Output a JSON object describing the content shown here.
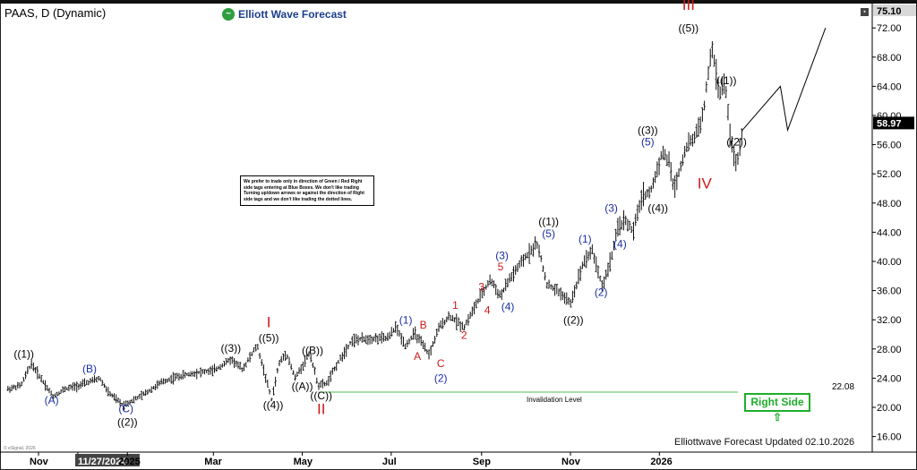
{
  "title": "PAAS, D (Dynamic)",
  "logo": {
    "text": "Elliott Wave Forecast",
    "icon": "elliott-wave-logo"
  },
  "disclaimer": "We prefer to trade only in direction of Green / Red Right side tags entering at Blue Boxes. We don't like trading Turning up/down arrows or against the direction of Right side tags and we don't like trading the dotted lines.",
  "right_side_tag": {
    "label": "Right Side",
    "arrow": "⇧"
  },
  "footer": "Elliottwave Forecast Updated 02.10.2026",
  "copyright": "© eSignal, 2026",
  "chart_data": {
    "type": "ohlc-bar",
    "y_axis": {
      "min": 16,
      "max": 76,
      "ticks": [
        16,
        20,
        24,
        28,
        32,
        36,
        40,
        44,
        48,
        52,
        56,
        60,
        64,
        68,
        72
      ],
      "tick_labels": [
        "16.00",
        "20.00",
        "24.00",
        "28.00",
        "32.00",
        "36.00",
        "40.00",
        "44.00",
        "48.00",
        "52.00",
        "56.00",
        "60.00",
        "64.00",
        "68.00",
        "72.00"
      ],
      "top_label": "75.10"
    },
    "x_axis": {
      "ticks": [
        {
          "label": "Nov",
          "d": 0
        },
        {
          "label": "11/27/2024",
          "d": 27,
          "highlight": true
        },
        {
          "label": "2025",
          "d": 61
        },
        {
          "label": "Mar",
          "d": 120
        },
        {
          "label": "May",
          "d": 181
        },
        {
          "label": "Jul",
          "d": 242
        },
        {
          "label": "Sep",
          "d": 304
        },
        {
          "label": "Nov",
          "d": 365
        },
        {
          "label": "2026",
          "d": 426
        }
      ],
      "day_range": [
        -21,
        542
      ]
    },
    "last_price": {
      "value": 58.97,
      "label": "58.97"
    },
    "invalidation": {
      "value": 22.08,
      "label": "22.08",
      "text": "Invalidation Level",
      "d_start": 192,
      "d_end": 480
    },
    "price_path": [
      [
        -21,
        22.5
      ],
      [
        -12,
        23
      ],
      [
        -5,
        26.0
      ],
      [
        0,
        24.5
      ],
      [
        10,
        21.5
      ],
      [
        18,
        22.5
      ],
      [
        28,
        23
      ],
      [
        42,
        24
      ],
      [
        48,
        22
      ],
      [
        58,
        20.3
      ],
      [
        70,
        21.5
      ],
      [
        85,
        23.5
      ],
      [
        95,
        24.2
      ],
      [
        110,
        24.8
      ],
      [
        120,
        25
      ],
      [
        132,
        26.6
      ],
      [
        140,
        25.2
      ],
      [
        150,
        28.5
      ],
      [
        160,
        21
      ],
      [
        165,
        26
      ],
      [
        170,
        27.5
      ],
      [
        176,
        24
      ],
      [
        182,
        26
      ],
      [
        186,
        27.5
      ],
      [
        192,
        23
      ],
      [
        198,
        23.3
      ],
      [
        205,
        26
      ],
      [
        215,
        29.2
      ],
      [
        227,
        29.4
      ],
      [
        240,
        29.5
      ],
      [
        245,
        31
      ],
      [
        252,
        28.4
      ],
      [
        258,
        30.2
      ],
      [
        268,
        27.2
      ],
      [
        275,
        31
      ],
      [
        282,
        32.5
      ],
      [
        292,
        31
      ],
      [
        300,
        34
      ],
      [
        310,
        37.5
      ],
      [
        317,
        35.2
      ],
      [
        323,
        37.5
      ],
      [
        335,
        40.8
      ],
      [
        342,
        42.5
      ],
      [
        349,
        36.8
      ],
      [
        358,
        35.7
      ],
      [
        365,
        34.2
      ],
      [
        374,
        40.0
      ],
      [
        380,
        41.5
      ],
      [
        387,
        36.5
      ],
      [
        393,
        40.5
      ],
      [
        398,
        44.9
      ],
      [
        403,
        45.6
      ],
      [
        408,
        44
      ],
      [
        414,
        49
      ],
      [
        420,
        49.5
      ],
      [
        428,
        55
      ],
      [
        433,
        53.5
      ],
      [
        436,
        49.8
      ],
      [
        444,
        55.5
      ],
      [
        450,
        57
      ],
      [
        456,
        60
      ],
      [
        462,
        69.5
      ],
      [
        467,
        63
      ],
      [
        471,
        64.5
      ],
      [
        475,
        56.5
      ],
      [
        479,
        53
      ],
      [
        483,
        58
      ]
    ],
    "projection": [
      [
        483,
        58
      ],
      [
        509,
        64
      ],
      [
        514,
        58
      ],
      [
        540,
        72
      ]
    ],
    "wave_labels": [
      {
        "text": "((1))",
        "d": -10,
        "v": 26.8,
        "color": "#000"
      },
      {
        "text": "(A)",
        "d": 9,
        "v": 20.5,
        "color": "#1a2ea6"
      },
      {
        "text": "(B)",
        "d": 35,
        "v": 24.8,
        "color": "#1a2ea6"
      },
      {
        "text": "(C)",
        "d": 60,
        "v": 19.3,
        "color": "#1a2ea6"
      },
      {
        "text": "((2))",
        "d": 61,
        "v": 17.5,
        "color": "#000"
      },
      {
        "text": "((3))",
        "d": 132,
        "v": 27.6,
        "color": "#000"
      },
      {
        "text": "((5))",
        "d": 158,
        "v": 29.0,
        "color": "#000"
      },
      {
        "text": "I",
        "d": 158,
        "v": 31.0,
        "color": "#d01818",
        "big": true
      },
      {
        "text": "((4))",
        "d": 161,
        "v": 19.8,
        "color": "#000"
      },
      {
        "text": "((B))",
        "d": 188,
        "v": 27.3,
        "color": "#000"
      },
      {
        "text": "((A))",
        "d": 181,
        "v": 22.4,
        "color": "#000"
      },
      {
        "text": "((C))",
        "d": 194,
        "v": 21.1,
        "color": "#000"
      },
      {
        "text": "II",
        "d": 194,
        "v": 19.1,
        "color": "#d01818",
        "big": true
      },
      {
        "text": "(1)",
        "d": 252,
        "v": 31.5,
        "color": "#1a2ea6"
      },
      {
        "text": "A",
        "d": 260,
        "v": 26.5,
        "color": "#d01818"
      },
      {
        "text": "B",
        "d": 264,
        "v": 30.8,
        "color": "#d01818"
      },
      {
        "text": "C",
        "d": 276,
        "v": 25.5,
        "color": "#d01818"
      },
      {
        "text": "(2)",
        "d": 276,
        "v": 23.5,
        "color": "#1a2ea6"
      },
      {
        "text": "1",
        "d": 286,
        "v": 33.5,
        "color": "#d01818"
      },
      {
        "text": "2",
        "d": 292,
        "v": 29.4,
        "color": "#d01818"
      },
      {
        "text": "3",
        "d": 304,
        "v": 36.0,
        "color": "#d01818"
      },
      {
        "text": "4",
        "d": 308,
        "v": 32.8,
        "color": "#d01818"
      },
      {
        "text": "5",
        "d": 317,
        "v": 38.8,
        "color": "#d01818"
      },
      {
        "text": "(3)",
        "d": 318,
        "v": 40.3,
        "color": "#1a2ea6"
      },
      {
        "text": "(4)",
        "d": 322,
        "v": 33.3,
        "color": "#1a2ea6"
      },
      {
        "text": "(5)",
        "d": 350,
        "v": 43.3,
        "color": "#1a2ea6"
      },
      {
        "text": "((1))",
        "d": 350,
        "v": 45.0,
        "color": "#000"
      },
      {
        "text": "((2))",
        "d": 367,
        "v": 31.5,
        "color": "#000"
      },
      {
        "text": "(1)",
        "d": 375,
        "v": 42.6,
        "color": "#1a2ea6"
      },
      {
        "text": "(2)",
        "d": 386,
        "v": 35.3,
        "color": "#1a2ea6"
      },
      {
        "text": "(3)",
        "d": 393,
        "v": 46.8,
        "color": "#1a2ea6"
      },
      {
        "text": "(4)",
        "d": 399,
        "v": 41.9,
        "color": "#1a2ea6"
      },
      {
        "text": "(5)",
        "d": 418,
        "v": 55.9,
        "color": "#1a2ea6"
      },
      {
        "text": "((3))",
        "d": 418,
        "v": 57.5,
        "color": "#000"
      },
      {
        "text": "((4))",
        "d": 425,
        "v": 46.8,
        "color": "#000"
      },
      {
        "text": "((5))",
        "d": 446,
        "v": 71.5,
        "color": "#000"
      },
      {
        "text": "III",
        "d": 446,
        "v": 74.5,
        "color": "#d01818",
        "big": true
      },
      {
        "text": "IV",
        "d": 457,
        "v": 50.0,
        "color": "#d01818",
        "big": true
      },
      {
        "text": "((1))",
        "d": 472,
        "v": 64.3,
        "color": "#000"
      },
      {
        "text": "((2))",
        "d": 479,
        "v": 55.9,
        "color": "#000"
      }
    ]
  }
}
